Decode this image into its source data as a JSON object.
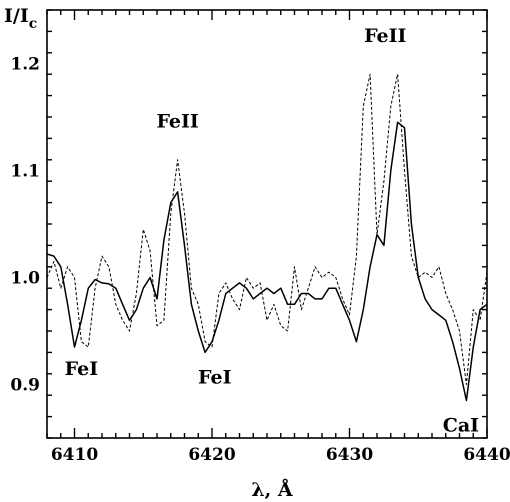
{
  "chart_data": {
    "type": "line",
    "title": "",
    "xlabel": "λ, Å",
    "ylabel_main": "I/I",
    "ylabel_sub": "c",
    "xlim": [
      6408,
      6440
    ],
    "ylim": [
      0.85,
      1.25
    ],
    "xticks": [
      6410,
      6420,
      6430,
      6440
    ],
    "xtick_labels": [
      "6410",
      "6420",
      "6430",
      "6440"
    ],
    "yticks": [
      0.9,
      1.0,
      1.1,
      1.2
    ],
    "ytick_labels": [
      "0.9",
      "1.0",
      "1.1",
      "1.2"
    ],
    "grid": false,
    "annotations": [
      {
        "text": "FeII",
        "x": 6417.5,
        "y": 1.14
      },
      {
        "text": "FeII",
        "x": 6432.6,
        "y": 1.22
      },
      {
        "text": "FeI",
        "x": 6410.5,
        "y": 0.909
      },
      {
        "text": "FeI",
        "x": 6420.2,
        "y": 0.901
      },
      {
        "text": "CaI",
        "x": 6438.1,
        "y": 0.856
      }
    ],
    "series": [
      {
        "style": "solid",
        "x": [
          6408.0,
          6408.5,
          6409.0,
          6409.5,
          6410.0,
          6410.5,
          6411.0,
          6411.5,
          6412.0,
          6412.5,
          6413.0,
          6413.5,
          6414.0,
          6414.5,
          6415.0,
          6415.5,
          6416.0,
          6416.5,
          6417.0,
          6417.5,
          6418.0,
          6418.5,
          6419.0,
          6419.5,
          6420.0,
          6420.5,
          6421.0,
          6421.5,
          6422.0,
          6422.5,
          6423.0,
          6423.5,
          6424.0,
          6424.5,
          6425.0,
          6425.5,
          6426.0,
          6426.5,
          6427.0,
          6427.5,
          6428.0,
          6428.5,
          6429.0,
          6429.5,
          6430.0,
          6430.5,
          6431.0,
          6431.5,
          6432.0,
          6432.5,
          6433.0,
          6433.5,
          6434.0,
          6434.5,
          6435.0,
          6435.5,
          6436.0,
          6436.5,
          6437.0,
          6437.5,
          6438.0,
          6438.5,
          6439.0,
          6439.5,
          6440.0
        ],
        "y": [
          1.022,
          1.02,
          1.01,
          0.975,
          0.935,
          0.96,
          0.99,
          0.998,
          0.995,
          0.994,
          0.99,
          0.975,
          0.96,
          0.97,
          0.99,
          1.0,
          0.98,
          1.035,
          1.07,
          1.08,
          1.03,
          0.975,
          0.95,
          0.93,
          0.94,
          0.96,
          0.985,
          0.99,
          0.995,
          0.99,
          0.98,
          0.985,
          0.99,
          0.985,
          0.99,
          0.975,
          0.975,
          0.985,
          0.985,
          0.98,
          0.98,
          0.99,
          0.99,
          0.975,
          0.96,
          0.94,
          0.97,
          1.01,
          1.04,
          1.03,
          1.1,
          1.145,
          1.14,
          1.05,
          1.0,
          0.98,
          0.97,
          0.965,
          0.96,
          0.94,
          0.915,
          0.885,
          0.935,
          0.97,
          0.975
        ]
      },
      {
        "style": "dashed",
        "x": [
          6408.0,
          6408.5,
          6409.0,
          6409.5,
          6410.0,
          6410.5,
          6411.0,
          6411.5,
          6412.0,
          6412.5,
          6413.0,
          6413.5,
          6414.0,
          6414.5,
          6415.0,
          6415.5,
          6416.0,
          6416.5,
          6417.0,
          6417.5,
          6418.0,
          6418.5,
          6419.0,
          6419.5,
          6420.0,
          6420.5,
          6421.0,
          6421.5,
          6422.0,
          6422.5,
          6423.0,
          6423.5,
          6424.0,
          6424.5,
          6425.0,
          6425.5,
          6426.0,
          6426.5,
          6427.0,
          6427.5,
          6428.0,
          6428.5,
          6429.0,
          6429.5,
          6430.0,
          6430.5,
          6431.0,
          6431.5,
          6432.0,
          6432.5,
          6433.0,
          6433.5,
          6434.0,
          6434.5,
          6435.0,
          6435.5,
          6436.0,
          6436.5,
          6437.0,
          6437.5,
          6438.0,
          6438.5,
          6439.0,
          6439.5,
          6440.0
        ],
        "y": [
          1.0,
          1.015,
          0.99,
          1.01,
          1.0,
          0.94,
          0.935,
          0.99,
          1.02,
          1.01,
          0.975,
          0.96,
          0.95,
          0.985,
          1.045,
          1.025,
          0.955,
          0.96,
          1.06,
          1.11,
          1.06,
          0.99,
          0.975,
          0.94,
          0.935,
          0.985,
          0.995,
          0.98,
          0.97,
          1.0,
          0.99,
          0.995,
          0.96,
          0.975,
          0.955,
          0.95,
          1.01,
          0.97,
          0.99,
          1.01,
          1.0,
          1.005,
          1.0,
          0.98,
          0.965,
          1.02,
          1.16,
          1.19,
          1.04,
          1.09,
          1.16,
          1.19,
          1.1,
          1.02,
          1.0,
          1.005,
          1.0,
          1.01,
          0.985,
          0.97,
          0.95,
          0.9,
          0.97,
          0.96,
          1.005
        ]
      }
    ]
  }
}
